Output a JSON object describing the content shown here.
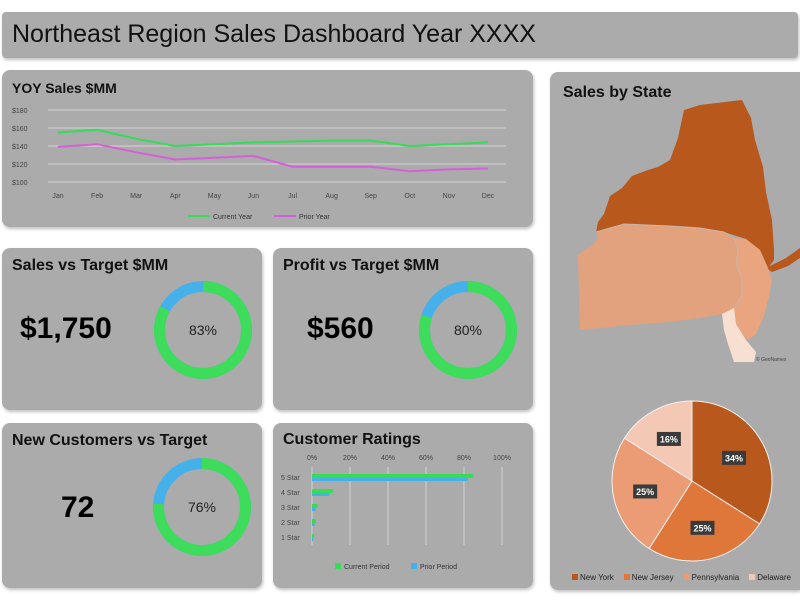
{
  "dashboard": {
    "title": "Northeast Region Sales Dashboard Year XXXX"
  },
  "yoy": {
    "title": "YOY Sales $MM",
    "legend": [
      "Current Year",
      "Prior Year"
    ]
  },
  "sales_target": {
    "title": "Sales vs Target $MM",
    "value": "$1,750",
    "pct_label": "83%"
  },
  "profit_target": {
    "title": "Profit vs Target $MM",
    "value": "$560",
    "pct_label": "80%"
  },
  "customers_target": {
    "title": "New Customers vs Target",
    "value": "72",
    "pct_label": "76%"
  },
  "ratings": {
    "title": "Customer Ratings",
    "legend": [
      "Current Period",
      "Prior Period"
    ]
  },
  "state_sales": {
    "title": "Sales by State",
    "map_credit": "© GeoNames",
    "legend": [
      "New York",
      "New Jersey",
      "Pennsylvania",
      "Delaware"
    ]
  },
  "colors": {
    "current_year": "#33dd55",
    "prior_year": "#d65fd9",
    "donut_fill": "#3ddc5a",
    "donut_remaining": "#46b0ea",
    "new_york": "#b8581c",
    "new_jersey": "#e0773a",
    "pennsylvania": "#ec9c74",
    "delaware": "#f3c9b6"
  },
  "chart_data": [
    {
      "type": "line",
      "title": "YOY Sales $MM",
      "categories": [
        "Jan",
        "Feb",
        "Mar",
        "Apr",
        "May",
        "Jun",
        "Jul",
        "Aug",
        "Sep",
        "Oct",
        "Nov",
        "Dec"
      ],
      "series": [
        {
          "name": "Current Year",
          "values": [
            155,
            158,
            148,
            140,
            142,
            144,
            145,
            146,
            146,
            140,
            142,
            144
          ]
        },
        {
          "name": "Prior Year",
          "values": [
            139,
            142,
            133,
            125,
            127,
            129,
            117,
            117,
            117,
            112,
            114,
            115
          ]
        }
      ],
      "y_ticks": [
        "$100",
        "$120",
        "$140",
        "$160",
        "$180"
      ],
      "ylim": [
        100,
        180
      ],
      "grid": true,
      "legend_position": "bottom"
    },
    {
      "type": "pie",
      "title": "Sales vs Target $MM",
      "values": [
        83,
        17
      ],
      "labels": [
        "83%",
        ""
      ]
    },
    {
      "type": "pie",
      "title": "Profit vs Target $MM",
      "values": [
        80,
        20
      ],
      "labels": [
        "80%",
        ""
      ]
    },
    {
      "type": "pie",
      "title": "New Customers vs Target",
      "values": [
        76,
        24
      ],
      "labels": [
        "76%",
        ""
      ]
    },
    {
      "type": "bar",
      "orientation": "horizontal",
      "title": "Customer Ratings",
      "categories": [
        "5 Star",
        "4 Star",
        "3 Star",
        "2 Star",
        "1 Star"
      ],
      "series": [
        {
          "name": "Current Period",
          "values": [
            0.85,
            0.11,
            0.03,
            0.02,
            0.01
          ]
        },
        {
          "name": "Prior Period",
          "values": [
            0.82,
            0.09,
            0.02,
            0.015,
            0.005
          ]
        }
      ],
      "x_ticks": [
        "0%",
        "20%",
        "40%",
        "60%",
        "80%",
        "100%"
      ],
      "xlim": [
        0,
        1
      ],
      "grid": true,
      "legend_position": "bottom"
    },
    {
      "type": "pie",
      "title": "Sales by State",
      "categories": [
        "New York",
        "New Jersey",
        "Pennsylvania",
        "Delaware"
      ],
      "values": [
        34,
        25,
        25,
        16
      ],
      "labels": [
        "34%",
        "25%",
        "25%",
        "16%"
      ],
      "legend_position": "bottom"
    }
  ]
}
